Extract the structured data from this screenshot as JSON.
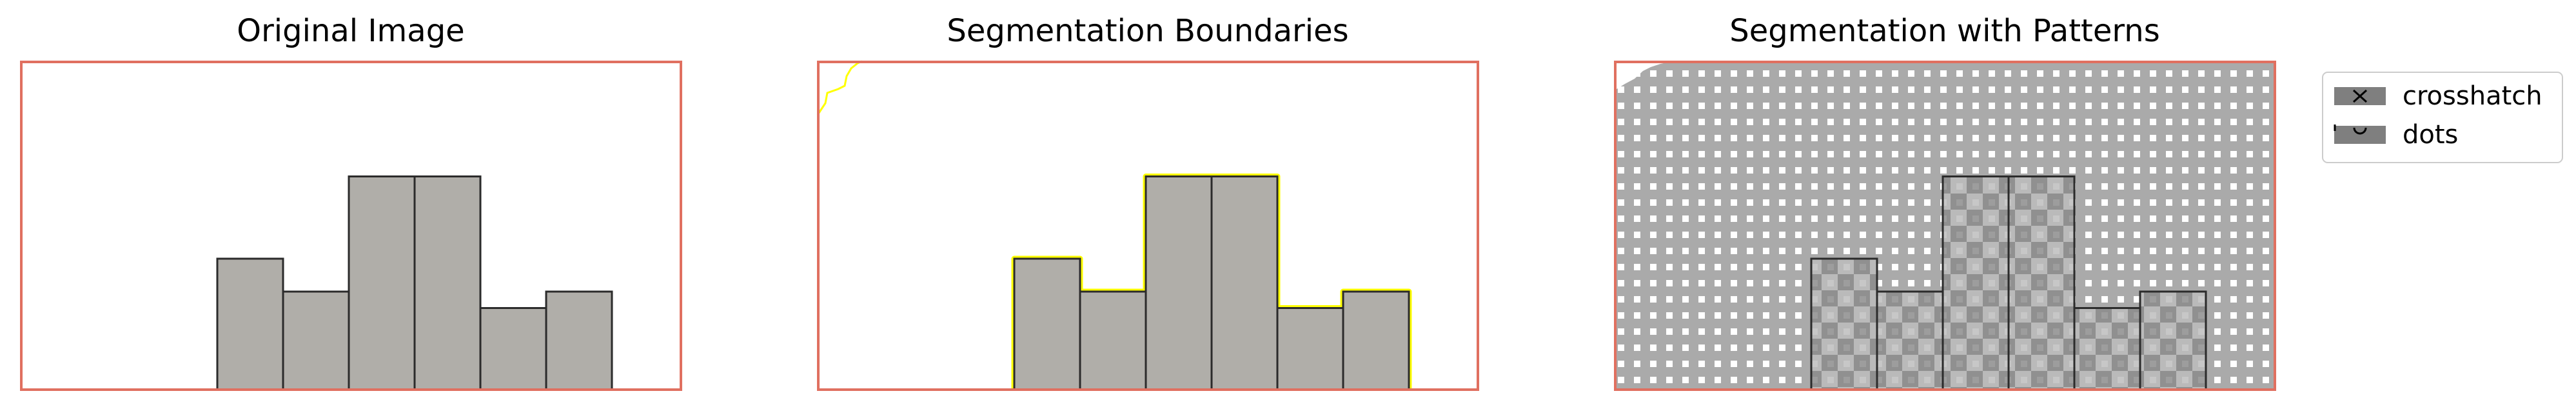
{
  "figure": {
    "panels": [
      {
        "title": "Original Image"
      },
      {
        "title": "Segmentation Boundaries"
      },
      {
        "title": "Segmentation with Patterns"
      }
    ],
    "legend": {
      "items": [
        {
          "label": "crosshatch",
          "pattern": "crosshatch"
        },
        {
          "label": "dots",
          "pattern": "dots"
        }
      ]
    }
  },
  "chart_data": [
    {
      "type": "bar",
      "title": "Original Image",
      "values": [
        4,
        3,
        6.5,
        6.5,
        2.5,
        3
      ],
      "ylim": [
        0,
        10
      ],
      "bar_color": "#b0aea9",
      "edge_color": "#2b2b2b",
      "frame_color": "#e07060"
    },
    {
      "type": "bar",
      "title": "Segmentation Boundaries",
      "values": [
        4,
        3,
        6.5,
        6.5,
        2.5,
        3
      ],
      "ylim": [
        0,
        10
      ],
      "bar_color": "#b0aea9",
      "edge_color": "#2b2b2b",
      "boundary_color": "#ffff00",
      "frame_color": "#e07060"
    },
    {
      "type": "bar",
      "title": "Segmentation with Patterns",
      "values": [
        4,
        3,
        6.5,
        6.5,
        2.5,
        3
      ],
      "ylim": [
        0,
        10
      ],
      "bar_color": "#b0aea9",
      "edge_color": "#2b2b2b",
      "pattern_color": "#aaaaaa",
      "frame_color": "#e07060",
      "legend_position": "upper-right-outside"
    }
  ]
}
